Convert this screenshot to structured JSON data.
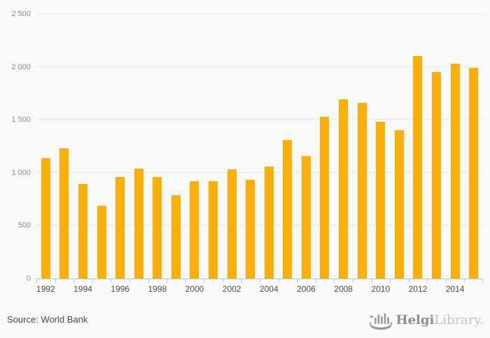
{
  "chart_data": {
    "type": "bar",
    "title": "",
    "categories": [
      1992,
      1993,
      1994,
      1995,
      1996,
      1997,
      1998,
      1999,
      2000,
      2001,
      2002,
      2003,
      2004,
      2005,
      2006,
      2007,
      2008,
      2009,
      2010,
      2011,
      2012,
      2013,
      2014,
      2015
    ],
    "values": [
      1140,
      1230,
      890,
      690,
      960,
      1040,
      960,
      790,
      920,
      920,
      1030,
      930,
      1060,
      1310,
      1160,
      1530,
      1690,
      1660,
      1480,
      1400,
      2100,
      1950,
      2030,
      1990
    ],
    "ylim": [
      0,
      2500
    ],
    "y_tick_values": [
      0,
      500,
      1000,
      1500,
      2000,
      2500
    ],
    "y_tick_labels": [
      "0",
      "500",
      "1 000",
      "1 500",
      "2 000",
      "2 500"
    ],
    "x_tick_labels": [
      "1992",
      "1994",
      "1996",
      "1998",
      "2000",
      "2002",
      "2004",
      "2006",
      "2008",
      "2010",
      "2012",
      "2014"
    ],
    "grid": true,
    "legend": false,
    "bar_color": "#faae06"
  },
  "footer": {
    "source": "Source: World Bank",
    "logo_text_primary": "Helgi",
    "logo_text_secondary": "Library."
  },
  "colors": {
    "background": "#f9f9f9",
    "bar": "#faae06",
    "gridline": "#e8e8e8",
    "axis": "#b7c3d7",
    "y_label": "#8c8c8c",
    "x_label": "#4d4d4d",
    "source_text": "#4a4a4a",
    "logo_primary": "#8e8e8e",
    "logo_secondary": "#c3c3c3",
    "logo_icon": "#9a9a9a"
  }
}
